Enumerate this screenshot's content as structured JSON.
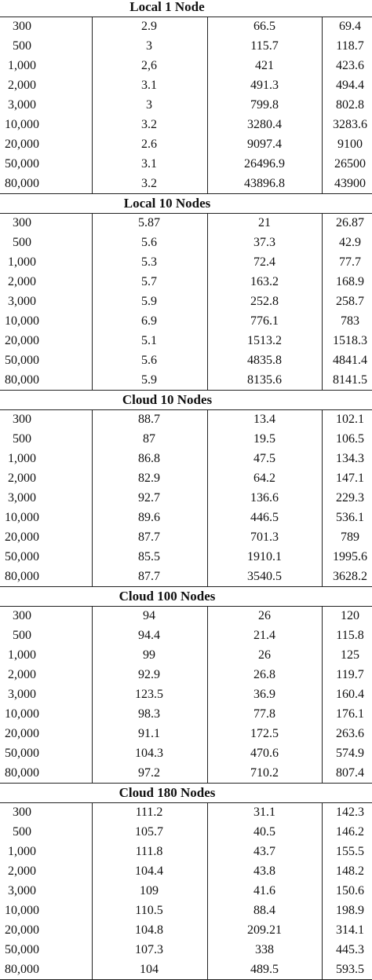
{
  "table": {
    "sections": [
      {
        "title": "Local 1 Node",
        "rows": [
          [
            "300",
            "2.9",
            "66.5",
            "69.4"
          ],
          [
            "500",
            "3",
            "115.7",
            "118.7"
          ],
          [
            "1,000",
            "2,6",
            "421",
            "423.6"
          ],
          [
            "2,000",
            "3.1",
            "491.3",
            "494.4"
          ],
          [
            "3,000",
            "3",
            "799.8",
            "802.8"
          ],
          [
            "10,000",
            "3.2",
            "3280.4",
            "3283.6"
          ],
          [
            "20,000",
            "2.6",
            "9097.4",
            "9100"
          ],
          [
            "50,000",
            "3.1",
            "26496.9",
            "26500"
          ],
          [
            "80,000",
            "3.2",
            "43896.8",
            "43900"
          ]
        ]
      },
      {
        "title": "Local 10 Nodes",
        "rows": [
          [
            "300",
            "5.87",
            "21",
            "26.87"
          ],
          [
            "500",
            "5.6",
            "37.3",
            "42.9"
          ],
          [
            "1,000",
            "5.3",
            "72.4",
            "77.7"
          ],
          [
            "2,000",
            "5.7",
            "163.2",
            "168.9"
          ],
          [
            "3,000",
            "5.9",
            "252.8",
            "258.7"
          ],
          [
            "10,000",
            "6.9",
            "776.1",
            "783"
          ],
          [
            "20,000",
            "5.1",
            "1513.2",
            "1518.3"
          ],
          [
            "50,000",
            "5.6",
            "4835.8",
            "4841.4"
          ],
          [
            "80,000",
            "5.9",
            "8135.6",
            "8141.5"
          ]
        ]
      },
      {
        "title": "Cloud 10 Nodes",
        "rows": [
          [
            "300",
            "88.7",
            "13.4",
            "102.1"
          ],
          [
            "500",
            "87",
            "19.5",
            "106.5"
          ],
          [
            "1,000",
            "86.8",
            "47.5",
            "134.3"
          ],
          [
            "2,000",
            "82.9",
            "64.2",
            "147.1"
          ],
          [
            "3,000",
            "92.7",
            "136.6",
            "229.3"
          ],
          [
            "10,000",
            "89.6",
            "446.5",
            "536.1"
          ],
          [
            "20,000",
            "87.7",
            "701.3",
            "789"
          ],
          [
            "50,000",
            "85.5",
            "1910.1",
            "1995.6"
          ],
          [
            "80,000",
            "87.7",
            "3540.5",
            "3628.2"
          ]
        ]
      },
      {
        "title": "Cloud 100 Nodes",
        "rows": [
          [
            "300",
            "94",
            "26",
            "120"
          ],
          [
            "500",
            "94.4",
            "21.4",
            "115.8"
          ],
          [
            "1,000",
            "99",
            "26",
            "125"
          ],
          [
            "2,000",
            "92.9",
            "26.8",
            "119.7"
          ],
          [
            "3,000",
            "123.5",
            "36.9",
            "160.4"
          ],
          [
            "10,000",
            "98.3",
            "77.8",
            "176.1"
          ],
          [
            "20,000",
            "91.1",
            "172.5",
            "263.6"
          ],
          [
            "50,000",
            "104.3",
            "470.6",
            "574.9"
          ],
          [
            "80,000",
            "97.2",
            "710.2",
            "807.4"
          ]
        ]
      },
      {
        "title": "Cloud 180 Nodes",
        "rows": [
          [
            "300",
            "111.2",
            "31.1",
            "142.3"
          ],
          [
            "500",
            "105.7",
            "40.5",
            "146.2"
          ],
          [
            "1,000",
            "111.8",
            "43.7",
            "155.5"
          ],
          [
            "2,000",
            "104.4",
            "43.8",
            "148.2"
          ],
          [
            "3,000",
            "109",
            "41.6",
            "150.6"
          ],
          [
            "10,000",
            "110.5",
            "88.4",
            "198.9"
          ],
          [
            "20,000",
            "104.8",
            "209.21",
            "314.1"
          ],
          [
            "50,000",
            "107.3",
            "338",
            "445.3"
          ],
          [
            "80,000",
            "104",
            "489.5",
            "593.5"
          ]
        ]
      }
    ]
  }
}
